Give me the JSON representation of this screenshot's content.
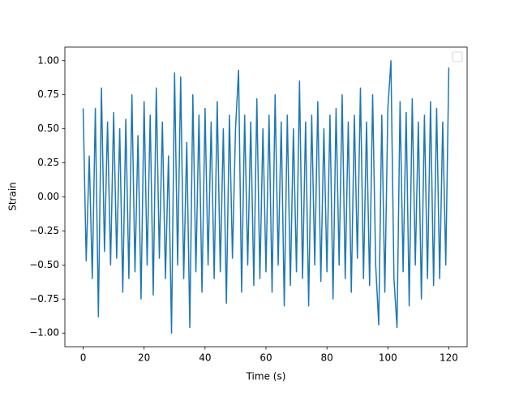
{
  "chart_data": {
    "type": "line",
    "xlabel": "Time (s)",
    "ylabel": "Strain",
    "x": [
      0,
      1,
      2,
      3,
      4,
      5,
      6,
      7,
      8,
      9,
      10,
      11,
      12,
      13,
      14,
      15,
      16,
      17,
      18,
      19,
      20,
      21,
      22,
      23,
      24,
      25,
      26,
      27,
      28,
      29,
      30,
      31,
      32,
      33,
      34,
      35,
      36,
      37,
      38,
      39,
      40,
      41,
      42,
      43,
      44,
      45,
      46,
      47,
      48,
      49,
      50,
      51,
      52,
      53,
      54,
      55,
      56,
      57,
      58,
      59,
      60,
      61,
      62,
      63,
      64,
      65,
      66,
      67,
      68,
      69,
      70,
      71,
      72,
      73,
      74,
      75,
      76,
      77,
      78,
      79,
      80,
      81,
      82,
      83,
      84,
      85,
      86,
      87,
      88,
      89,
      90,
      91,
      92,
      93,
      94,
      95,
      96,
      97,
      98,
      99,
      100,
      101,
      102,
      103,
      104,
      105,
      106,
      107,
      108,
      109,
      110,
      111,
      112,
      113,
      114,
      115,
      116,
      117,
      118,
      119,
      120
    ],
    "series": [
      {
        "color": "#1f77b4",
        "values": [
          0.65,
          -0.47,
          0.3,
          -0.6,
          0.65,
          -0.88,
          0.8,
          -0.4,
          0.55,
          -0.5,
          0.62,
          -0.45,
          0.5,
          -0.7,
          0.57,
          -0.6,
          0.75,
          -0.55,
          0.45,
          -0.75,
          0.7,
          -0.5,
          0.6,
          -0.72,
          0.8,
          -0.45,
          0.55,
          -0.6,
          0.3,
          -1.0,
          0.91,
          -0.5,
          0.88,
          -0.6,
          0.4,
          -0.96,
          0.75,
          -0.55,
          0.6,
          -0.7,
          0.65,
          -0.5,
          0.55,
          -0.6,
          0.7,
          -0.55,
          0.5,
          -0.78,
          0.6,
          -0.45,
          0.5,
          0.93,
          -0.7,
          0.6,
          -0.5,
          0.55,
          -0.65,
          0.72,
          -0.6,
          0.5,
          -0.55,
          0.6,
          -0.7,
          0.75,
          -0.5,
          0.55,
          -0.8,
          0.6,
          -0.65,
          0.5,
          -0.55,
          0.85,
          -0.6,
          0.55,
          -0.8,
          0.6,
          -0.5,
          0.7,
          -0.62,
          0.5,
          -0.55,
          0.6,
          -0.75,
          0.65,
          -0.5,
          0.75,
          -0.6,
          0.55,
          -0.7,
          0.6,
          -0.45,
          0.8,
          -0.6,
          0.55,
          -0.65,
          0.75,
          -0.5,
          -0.94,
          0.6,
          -0.7,
          0.65,
          1.0,
          -0.6,
          -0.96,
          0.7,
          -0.55,
          0.62,
          -0.8,
          0.72,
          -0.5,
          0.55,
          -0.75,
          0.6,
          -0.6,
          0.7,
          -0.65,
          0.65,
          -0.6,
          0.55,
          -0.5,
          0.95
        ]
      }
    ],
    "xlim": [
      -6,
      126
    ],
    "xticks": [
      0,
      20,
      40,
      60,
      80,
      100,
      120
    ],
    "ylim": [
      -1.1,
      1.1
    ],
    "yticks": [
      {
        "value": -1.0,
        "label": "−1.00"
      },
      {
        "value": -0.75,
        "label": "−0.75"
      },
      {
        "value": -0.5,
        "label": "−0.50"
      },
      {
        "value": -0.25,
        "label": "−0.25"
      },
      {
        "value": 0.0,
        "label": "0.00"
      },
      {
        "value": 0.25,
        "label": "0.25"
      },
      {
        "value": 0.5,
        "label": "0.50"
      },
      {
        "value": 0.75,
        "label": "0.75"
      },
      {
        "value": 1.0,
        "label": "1.00"
      }
    ],
    "legend": "upper right",
    "grid": false
  }
}
